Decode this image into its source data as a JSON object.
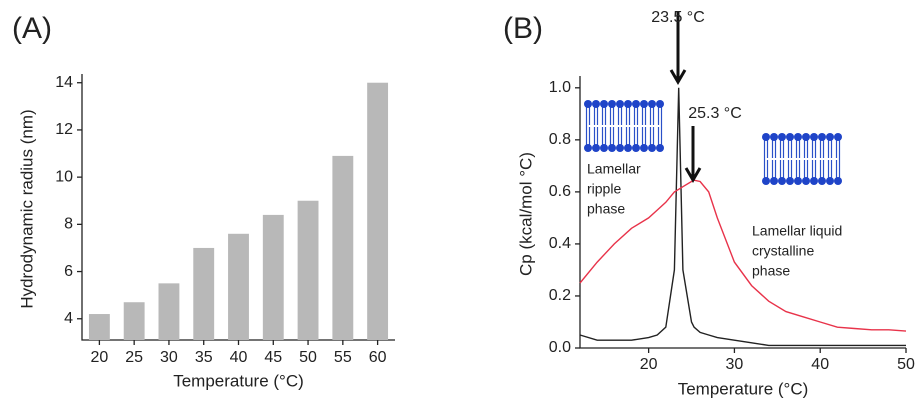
{
  "chart_data": [
    {
      "type": "bar",
      "panel_label": "(A)",
      "x_label": "Temperature (°C)",
      "y_label": "Hydrodynamic radius (nm)",
      "categories": [
        "20",
        "25",
        "30",
        "35",
        "40",
        "45",
        "50",
        "55",
        "60"
      ],
      "values": [
        4.2,
        4.7,
        5.5,
        7.0,
        7.6,
        8.4,
        9.0,
        10.9,
        14.0
      ],
      "color": "#b8b8b8",
      "ylim": [
        3.1,
        14.2
      ],
      "yticks": [
        4,
        6,
        8,
        10,
        12,
        14
      ]
    },
    {
      "type": "line",
      "panel_label": "(B)",
      "x_label": "Temperature (°C)",
      "y_label": "Cp (kcal/mol °C)",
      "x": [
        12,
        14,
        16,
        18,
        20,
        21,
        22,
        23,
        23.5,
        24,
        25,
        25.3,
        26,
        27,
        28,
        30,
        32,
        34,
        36,
        38,
        40,
        42,
        44,
        46,
        48,
        50
      ],
      "series": [
        {
          "color": "#222222",
          "values": [
            0.05,
            0.03,
            0.03,
            0.03,
            0.04,
            0.05,
            0.08,
            0.3,
            1.0,
            0.3,
            0.1,
            0.08,
            0.06,
            0.05,
            0.04,
            0.03,
            0.02,
            0.01,
            0.01,
            0.01,
            0.01,
            0.01,
            0.01,
            0.01,
            0.01,
            0.01
          ]
        },
        {
          "color": "#e8334a",
          "values": [
            0.25,
            0.33,
            0.4,
            0.46,
            0.5,
            0.53,
            0.56,
            0.6,
            0.61,
            0.62,
            0.64,
            0.645,
            0.64,
            0.6,
            0.5,
            0.33,
            0.24,
            0.18,
            0.14,
            0.12,
            0.1,
            0.08,
            0.075,
            0.07,
            0.07,
            0.065
          ]
        }
      ],
      "xlim": [
        12,
        50
      ],
      "xticks": [
        20,
        30,
        40,
        50
      ],
      "ylim": [
        0,
        1.03
      ],
      "yticks": [
        {
          "value": 0,
          "label": "0.0"
        },
        0.2,
        0.4,
        0.6,
        0.8,
        {
          "value": 1,
          "label": "1.0"
        }
      ],
      "annotations": [
        {
          "lines": [
            "23.5 °C"
          ]
        },
        {
          "lines": [
            "25.3 °C"
          ]
        },
        {
          "lines": [
            "Lamellar",
            "ripple",
            "phase"
          ]
        },
        {
          "lines": [
            "Lamellar liquid",
            "crystalline",
            "phase"
          ]
        }
      ]
    }
  ]
}
